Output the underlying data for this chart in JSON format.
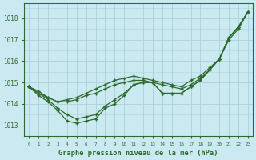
{
  "title": "Graphe pression niveau de la mer (hPa)",
  "background_color": "#cbe9f0",
  "grid_color": "#b0d4dd",
  "line_color": "#2d6a2d",
  "xlim": [
    -0.5,
    23.5
  ],
  "ylim": [
    1012.5,
    1018.7
  ],
  "yticks": [
    1013,
    1014,
    1015,
    1016,
    1017,
    1018
  ],
  "xtick_labels": [
    "0",
    "1",
    "2",
    "3",
    "4",
    "5",
    "6",
    "7",
    "8",
    "9",
    "10",
    "11",
    "12",
    "13",
    "14",
    "15",
    "16",
    "17",
    "18",
    "19",
    "20",
    "21",
    "22",
    "23"
  ],
  "series": [
    [
      1014.8,
      1014.6,
      1014.3,
      1014.1,
      1014.1,
      1014.2,
      1014.4,
      1014.5,
      1014.7,
      1014.9,
      1015.0,
      1015.1,
      1015.1,
      1015.0,
      1014.9,
      1014.8,
      1014.7,
      1014.9,
      1015.2,
      1015.6,
      1016.1,
      1017.1,
      1017.6,
      1018.3
    ],
    [
      1014.8,
      1014.5,
      1014.2,
      1013.8,
      1013.5,
      1013.3,
      1013.4,
      1013.5,
      1013.9,
      1014.2,
      1014.5,
      1014.9,
      1015.0,
      1015.0,
      1014.5,
      1014.5,
      1014.5,
      1014.8,
      1015.1,
      1015.6,
      1016.1,
      1017.0,
      1017.5,
      1018.3
    ],
    [
      1014.8,
      1014.4,
      1014.1,
      1013.7,
      1013.2,
      1013.1,
      1013.2,
      1013.3,
      1013.8,
      1014.0,
      1014.4,
      1014.9,
      1015.0,
      1015.0,
      1014.5,
      1014.5,
      1014.5,
      1014.8,
      1015.1,
      1015.6,
      1016.1,
      1017.1,
      1017.6,
      1018.3
    ],
    [
      1014.8,
      1014.5,
      1014.3,
      1014.1,
      1014.2,
      1014.3,
      1014.5,
      1014.7,
      1014.9,
      1015.1,
      1015.2,
      1015.3,
      1015.2,
      1015.1,
      1015.0,
      1014.9,
      1014.8,
      1015.1,
      1015.3,
      1015.7,
      1016.1,
      1017.1,
      1017.6,
      1018.3
    ]
  ]
}
